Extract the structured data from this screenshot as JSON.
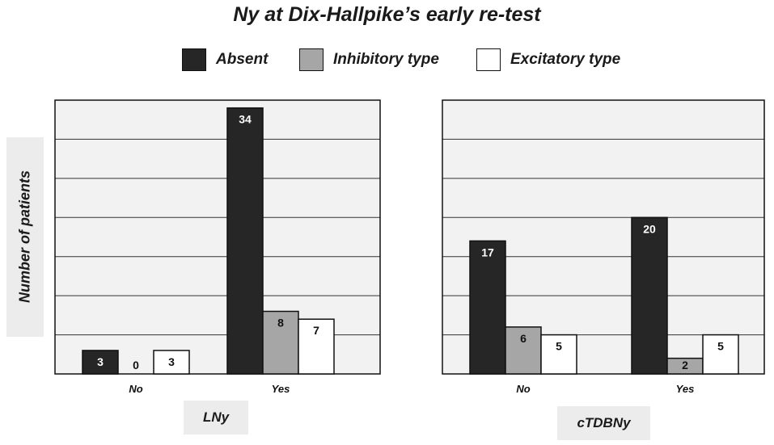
{
  "chart_data": {
    "type": "bar",
    "title": "Ny at Dix-Hallpike’s early re-test",
    "ylabel": "Number of patients",
    "legend": {
      "position": "top",
      "entries": [
        {
          "name": "Absent",
          "color": "#262626"
        },
        {
          "name": "Inhibitory type",
          "color": "#a6a6a6"
        },
        {
          "name": "Excitatory type",
          "color": "#ffffff"
        }
      ]
    },
    "grid": true,
    "panels": [
      {
        "label": "LNy",
        "categories": [
          "No",
          "Yes"
        ],
        "ylim": [
          0,
          35
        ],
        "series": [
          {
            "name": "Absent",
            "values": [
              3,
              34
            ]
          },
          {
            "name": "Inhibitory type",
            "values": [
              0,
              8
            ]
          },
          {
            "name": "Excitatory type",
            "values": [
              3,
              7
            ]
          }
        ]
      },
      {
        "label": "cTDBNy",
        "categories": [
          "No",
          "Yes"
        ],
        "ylim": [
          0,
          35
        ],
        "series": [
          {
            "name": "Absent",
            "values": [
              17,
              20
            ]
          },
          {
            "name": "Inhibitory type",
            "values": [
              6,
              2
            ]
          },
          {
            "name": "Excitatory type",
            "values": [
              5,
              5
            ]
          }
        ]
      }
    ]
  }
}
